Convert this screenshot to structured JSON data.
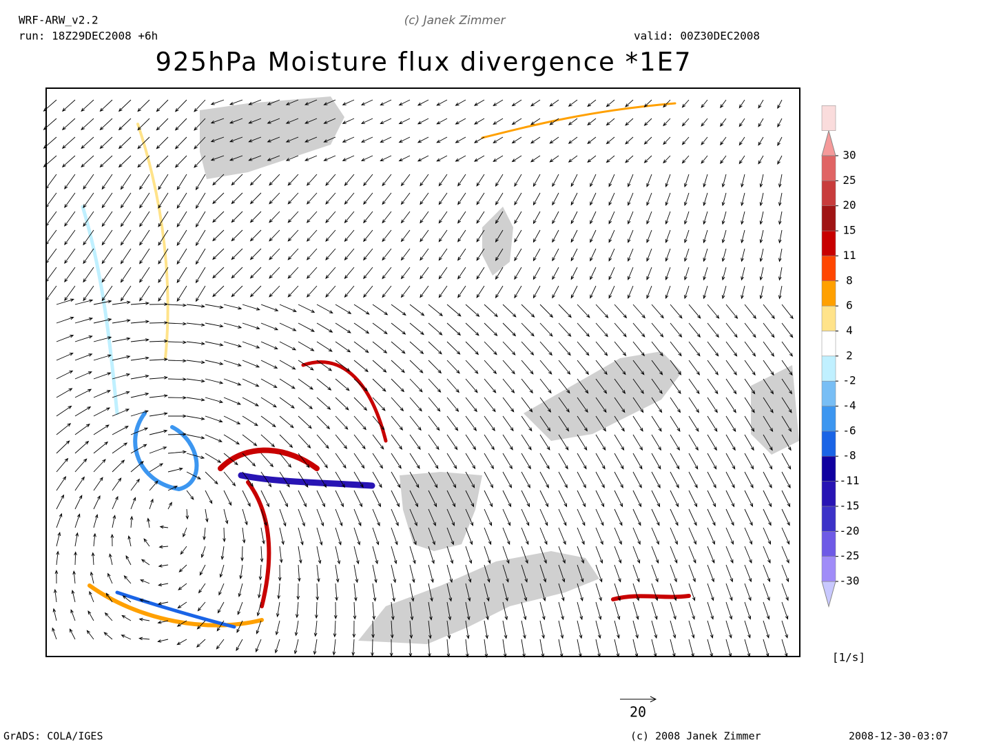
{
  "header": {
    "model": "WRF-ARW_v2.2",
    "run": "run: 18Z29DEC2008 +6h",
    "credit": "(c) Janek Zimmer",
    "valid": "valid: 00Z30DEC2008",
    "title": "925hPa Moisture flux divergence *1E7"
  },
  "colorbar": {
    "levels": [
      -30,
      -25,
      -20,
      -15,
      -11,
      -8,
      -6,
      -4,
      -2,
      2,
      4,
      6,
      8,
      11,
      15,
      20,
      25,
      30
    ],
    "colors": [
      "#c8c8ff",
      "#a08cf8",
      "#6e5ae6",
      "#3c32c8",
      "#2814b4",
      "#1000a0",
      "#1a64e6",
      "#3c96f0",
      "#78beF5",
      "#c0f0ff",
      "#ffffff",
      "#ffe38a",
      "#ffa000",
      "#ff4600",
      "#c80000",
      "#a01414",
      "#c83c3c",
      "#e06464",
      "#f59a9a",
      "#fadcdc"
    ],
    "unit": "[1/s]"
  },
  "vector_scale": {
    "value": 20
  },
  "footer": {
    "software": "GrADS: COLA/IGES",
    "copyright": "(c) 2008 Janek Zimmer",
    "timestamp": "2008-12-30-03:07"
  }
}
